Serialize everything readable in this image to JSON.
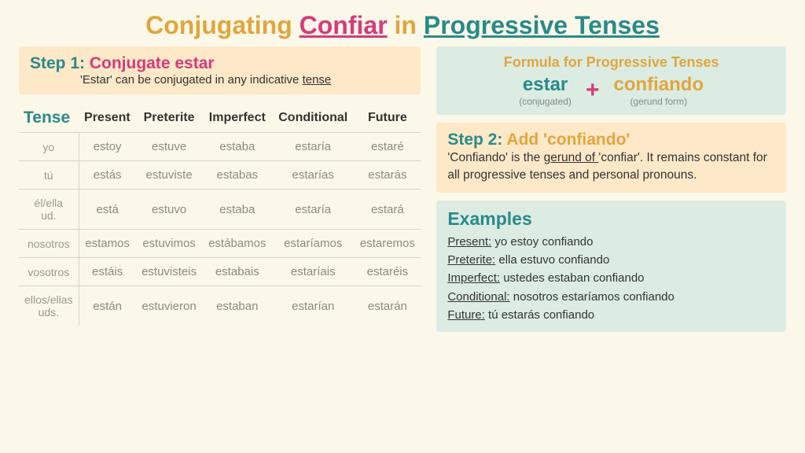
{
  "title": {
    "prefix": "Conjugating ",
    "verb": "Confiar",
    "in": " in ",
    "tenses": "Progressive Tenses"
  },
  "step1": {
    "label": "Step 1: ",
    "title": "Conjugate estar",
    "sub_before": "'Estar' can be conjugated in any indicative ",
    "sub_underline": "tense"
  },
  "table": {
    "head_tense": "Tense",
    "columns": [
      "Present",
      "Preterite",
      "Imperfect",
      "Conditional",
      "Future"
    ],
    "rows": [
      {
        "pronoun": "yo",
        "cells": [
          "estoy",
          "estuve",
          "estaba",
          "estaría",
          "estaré"
        ]
      },
      {
        "pronoun": "tú",
        "cells": [
          "estás",
          "estuviste",
          "estabas",
          "estarías",
          "estarás"
        ]
      },
      {
        "pronoun": "él/ella\nud.",
        "cells": [
          "está",
          "estuvo",
          "estaba",
          "estaría",
          "estará"
        ]
      },
      {
        "pronoun": "nosotros",
        "cells": [
          "estamos",
          "estuvimos",
          "estábamos",
          "estaríamos",
          "estaremos"
        ]
      },
      {
        "pronoun": "vosotros",
        "cells": [
          "estáis",
          "estuvisteis",
          "estabais",
          "estaríais",
          "estaréis"
        ]
      },
      {
        "pronoun": "ellos/ellas\nuds.",
        "cells": [
          "están",
          "estuvieron",
          "estaban",
          "estarían",
          "estarán"
        ]
      }
    ]
  },
  "formula": {
    "head": "Formula for Progressive Tenses",
    "left_word": "estar",
    "left_sub": "(conjugated)",
    "plus": "+",
    "right_word": "confiando",
    "right_sub": "(gerund form)"
  },
  "step2": {
    "label": "Step 2: ",
    "title": "Add 'confiando'",
    "body_before": "'Confiando' is the ",
    "body_underline": "gerund of ",
    "body_after": "'confiar'.  It remains constant for all progressive tenses and personal pronouns."
  },
  "examples": {
    "head": "Examples",
    "items": [
      {
        "tense": "Present:",
        "text": " yo estoy confiando"
      },
      {
        "tense": "Preterite:",
        "text": " ella estuvo confiando"
      },
      {
        "tense": "Imperfect:",
        "text": " ustedes estaban confiando"
      },
      {
        "tense": "Conditional:",
        "text": " nosotros estaríamos confiando"
      },
      {
        "tense": "Future:",
        "text": " tú estarás confiando"
      }
    ]
  }
}
